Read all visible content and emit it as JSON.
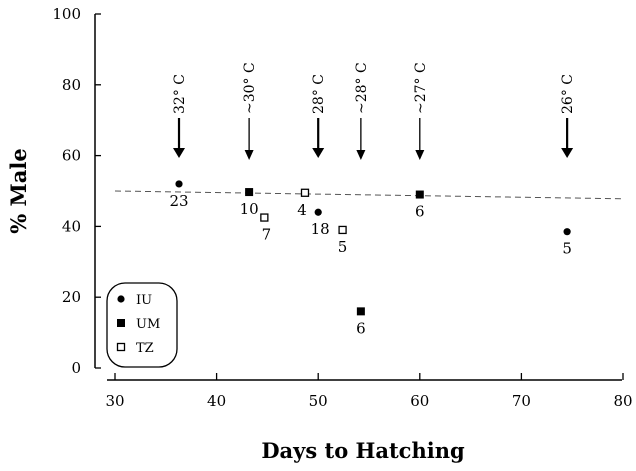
{
  "chart_data": {
    "type": "scatter",
    "xlabel": "Days to Hatching",
    "ylabel": "% Male",
    "xlim": [
      30,
      80
    ],
    "ylim": [
      0,
      100
    ],
    "xticks": [
      30,
      40,
      50,
      60,
      70,
      80
    ],
    "yticks": [
      0,
      20,
      40,
      60,
      80,
      100
    ],
    "grid": false,
    "legend_position": "bottom-left",
    "series": [
      {
        "name": "IU",
        "marker": "filled-circle",
        "points": [
          {
            "x": 36.3,
            "y": 52,
            "n": "23"
          },
          {
            "x": 50,
            "y": 44,
            "n": "18"
          },
          {
            "x": 74.5,
            "y": 38.5,
            "n": "5"
          }
        ]
      },
      {
        "name": "UM",
        "marker": "filled-square",
        "points": [
          {
            "x": 43.2,
            "y": 49.7,
            "n": "10"
          },
          {
            "x": 54.2,
            "y": 16,
            "n": "6"
          },
          {
            "x": 60,
            "y": 49,
            "n": "6"
          }
        ]
      },
      {
        "name": "TZ",
        "marker": "open-square",
        "points": [
          {
            "x": 44.7,
            "y": 42.5,
            "n": "7"
          },
          {
            "x": 48.7,
            "y": 49.5,
            "n": "4"
          },
          {
            "x": 52.4,
            "y": 39,
            "n": "5"
          }
        ]
      }
    ],
    "trend_line": {
      "style": "dashed",
      "x": [
        30,
        80
      ],
      "y": [
        50,
        47.8
      ]
    },
    "temperature_annotations": [
      {
        "x": 36.3,
        "label": "32° C",
        "bold": true
      },
      {
        "x": 43.2,
        "label": "~30° C",
        "bold": false
      },
      {
        "x": 50,
        "label": "28° C",
        "bold": true
      },
      {
        "x": 54.2,
        "label": "~28° C",
        "bold": false
      },
      {
        "x": 60,
        "label": "~27° C",
        "bold": false
      },
      {
        "x": 74.5,
        "label": "26° C",
        "bold": true
      }
    ]
  }
}
